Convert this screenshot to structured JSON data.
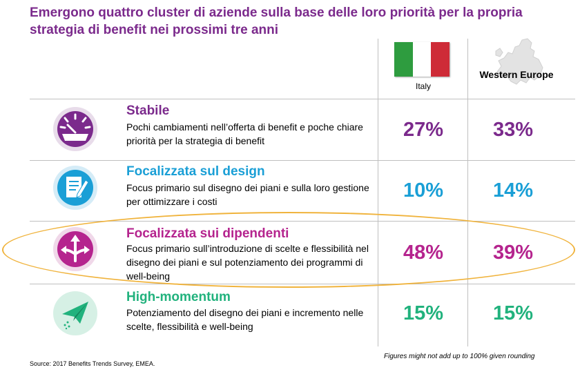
{
  "title": "Emergono quattro cluster di aziende sulla base delle loro priorità per la propria strategia di benefit nei prossimi tre anni",
  "columns": {
    "italy": "Italy",
    "europe": "Western Europe"
  },
  "flag_colors": [
    "#2e9c3f",
    "#ffffff",
    "#ce2b37"
  ],
  "rows": [
    {
      "icon": "gauge-icon",
      "color": "#7b2a8c",
      "title": "Stabile",
      "description": "Pochi cambiamenti nell’offerta di benefit e poche chiare priorità per la strategia di benefit",
      "italy": "27%",
      "europe": "33%"
    },
    {
      "icon": "document-edit-icon",
      "color": "#1a9fd6",
      "title": "Focalizzata sul design",
      "description": "Focus primario sul disegno dei piani e sulla loro gestione per ottimizzare i costi",
      "italy": "10%",
      "europe": "14%"
    },
    {
      "icon": "split-arrows-icon",
      "color": "#b5248e",
      "title": "Focalizzata sui dipendenti",
      "description": "Focus primario sull’introduzione di scelte e flessibilità nel disegno dei piani e sul potenziamento dei programmi di well-being",
      "italy": "48%",
      "europe": "39%"
    },
    {
      "icon": "paper-plane-icon",
      "color": "#21b27d",
      "title": "High-momentum",
      "description": "Potenziamento del disegno dei piani e incremento nelle scelte, flessibilità e well-being",
      "italy": "15%",
      "europe": "15%"
    }
  ],
  "highlight_color": "#f0b33c",
  "source": "Source: 2017 Benefits Trends Survey, EMEA.",
  "footnote": "Figures might not add up to 100% given rounding"
}
